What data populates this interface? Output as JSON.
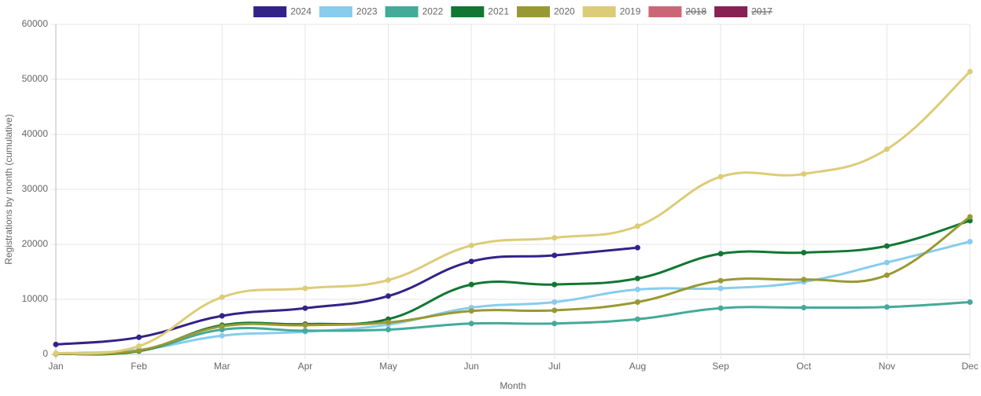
{
  "chart_data": {
    "type": "line",
    "xlabel": "Month",
    "ylabel": "Registrations by month (cumulative)",
    "categories": [
      "Jan",
      "Feb",
      "Mar",
      "Apr",
      "May",
      "Jun",
      "Jul",
      "Aug",
      "Sep",
      "Oct",
      "Nov",
      "Dec"
    ],
    "ylim": [
      0,
      60000
    ],
    "yticks": [
      0,
      10000,
      20000,
      30000,
      40000,
      50000,
      60000
    ],
    "grid": true,
    "legend": "top",
    "series": [
      {
        "name": "2024",
        "color": "#332288",
        "values": [
          1800,
          3100,
          7000,
          8400,
          10600,
          16900,
          18000,
          19400,
          null,
          null,
          null,
          null
        ]
      },
      {
        "name": "2023",
        "color": "#88ccee",
        "values": [
          200,
          800,
          3400,
          4100,
          5400,
          8500,
          9500,
          11800,
          12000,
          13200,
          16700,
          20500
        ]
      },
      {
        "name": "2022",
        "color": "#44aa99",
        "values": [
          100,
          600,
          4500,
          4300,
          4500,
          5600,
          5600,
          6400,
          8400,
          8500,
          8600,
          9500
        ]
      },
      {
        "name": "2021",
        "color": "#117733",
        "values": [
          100,
          600,
          5300,
          5500,
          6400,
          12700,
          12700,
          13800,
          18300,
          18500,
          19700,
          24300
        ]
      },
      {
        "name": "2020",
        "color": "#999933",
        "values": [
          100,
          700,
          5100,
          5300,
          5800,
          7900,
          8000,
          9500,
          13400,
          13600,
          14400,
          25000
        ]
      },
      {
        "name": "2019",
        "color": "#ddcc77",
        "values": [
          200,
          1500,
          10400,
          12000,
          13500,
          19800,
          21200,
          23300,
          32300,
          32800,
          37300,
          51400
        ]
      },
      {
        "name": "2018",
        "color": "#cc6677",
        "hidden": true,
        "values": [
          null,
          null,
          null,
          null,
          null,
          null,
          null,
          null,
          null,
          null,
          null,
          null
        ]
      },
      {
        "name": "2017",
        "color": "#882255",
        "hidden": true,
        "values": [
          null,
          null,
          null,
          null,
          null,
          null,
          null,
          null,
          null,
          null,
          null,
          null
        ]
      }
    ]
  }
}
